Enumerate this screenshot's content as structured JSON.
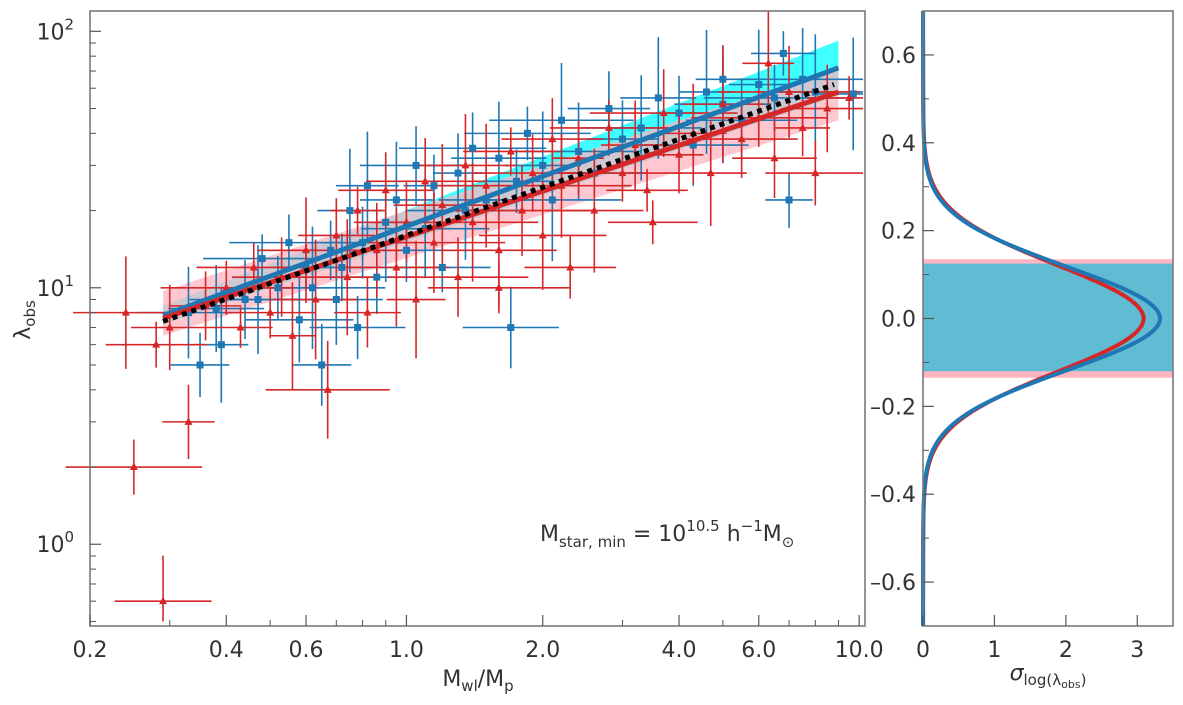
{
  "chart_data": [
    {
      "id": "main-scatter",
      "type": "scatter",
      "xscale": "log",
      "yscale": "log",
      "xlim": [
        0.2,
        10.3
      ],
      "ylim": [
        0.48,
        120
      ],
      "xticks": [
        {
          "value": 0.2,
          "label": "0.2"
        },
        {
          "value": 0.4,
          "label": "0.4"
        },
        {
          "value": 0.6,
          "label": "0.6"
        },
        {
          "value": 1.0,
          "label": "1.0"
        },
        {
          "value": 2.0,
          "label": "2.0"
        },
        {
          "value": 4.0,
          "label": "4.0"
        },
        {
          "value": 6.0,
          "label": "6.0"
        },
        {
          "value": 10.0,
          "label": "10.0"
        }
      ],
      "yticks": [
        {
          "value": 1,
          "base": "10",
          "exp": "0"
        },
        {
          "value": 10,
          "base": "10",
          "exp": "1"
        },
        {
          "value": 100,
          "base": "10",
          "exp": "2"
        }
      ],
      "xlabel": {
        "main": "M",
        "sub1": "wl",
        "mid": "/M",
        "sub2": "p"
      },
      "ylabel": {
        "main": "λ",
        "sub": "obs"
      },
      "annotation": {
        "pre": "M",
        "sub": "star, min",
        "eq": " = 10",
        "sup": "10.5",
        "unit1": " h",
        "sup2": "−1",
        "unit2": "M",
        "sub2": "⊙"
      },
      "series": [
        {
          "color": "#1f77b4",
          "marker": "square",
          "points": [
            [
              0.33,
              8.0
            ],
            [
              0.35,
              5.0
            ],
            [
              0.38,
              8.3
            ],
            [
              0.39,
              6.0
            ],
            [
              0.44,
              9.0
            ],
            [
              0.47,
              9.0
            ],
            [
              0.48,
              13.0
            ],
            [
              0.52,
              10.0
            ],
            [
              0.55,
              15.0
            ],
            [
              0.58,
              7.5
            ],
            [
              0.6,
              12.0
            ],
            [
              0.62,
              10.0
            ],
            [
              0.65,
              5.0
            ],
            [
              0.68,
              14.0
            ],
            [
              0.7,
              9.0
            ],
            [
              0.72,
              12.0
            ],
            [
              0.75,
              20.0
            ],
            [
              0.78,
              7.0
            ],
            [
              0.8,
              15.0
            ],
            [
              0.82,
              25.0
            ],
            [
              0.86,
              11.0
            ],
            [
              0.9,
              18.0
            ],
            [
              0.95,
              22.0
            ],
            [
              1.0,
              14.0
            ],
            [
              1.05,
              30.0
            ],
            [
              1.1,
              17.0
            ],
            [
              1.15,
              25.0
            ],
            [
              1.2,
              12.0
            ],
            [
              1.3,
              28.0
            ],
            [
              1.35,
              20.0
            ],
            [
              1.4,
              35.0
            ],
            [
              1.5,
              22.0
            ],
            [
              1.6,
              32.0
            ],
            [
              1.7,
              7.0
            ],
            [
              1.75,
              26.0
            ],
            [
              1.85,
              40.0
            ],
            [
              2.0,
              30.0
            ],
            [
              2.1,
              22.0
            ],
            [
              2.2,
              45.0
            ],
            [
              2.4,
              34.0
            ],
            [
              2.6,
              28.0
            ],
            [
              2.8,
              50.0
            ],
            [
              3.0,
              38.0
            ],
            [
              3.3,
              42.0
            ],
            [
              3.6,
              55.0
            ],
            [
              4.0,
              48.0
            ],
            [
              4.3,
              36.0
            ],
            [
              4.6,
              58.0
            ],
            [
              5.0,
              52.0
            ],
            [
              5.5,
              45.0
            ],
            [
              6.0,
              62.0
            ],
            [
              6.5,
              55.0
            ],
            [
              7.0,
              22.0
            ],
            [
              7.5,
              65.0
            ],
            [
              8.0,
              58.0
            ],
            [
              9.7,
              57.0
            ],
            [
              6.8,
              82.0
            ],
            [
              5.0,
              65.0
            ]
          ]
        },
        {
          "color": "#d62728",
          "marker": "triangle",
          "points": [
            [
              0.24,
              8.0
            ],
            [
              0.25,
              2.0
            ],
            [
              0.28,
              6.0
            ],
            [
              0.3,
              7.0
            ],
            [
              0.33,
              3.0
            ],
            [
              0.36,
              8.5
            ],
            [
              0.4,
              10.0
            ],
            [
              0.43,
              7.0
            ],
            [
              0.46,
              12.0
            ],
            [
              0.5,
              8.0
            ],
            [
              0.53,
              11.0
            ],
            [
              0.56,
              6.5
            ],
            [
              0.6,
              14.0
            ],
            [
              0.63,
              9.0
            ],
            [
              0.67,
              4.0
            ],
            [
              0.7,
              16.0
            ],
            [
              0.74,
              11.0
            ],
            [
              0.78,
              20.0
            ],
            [
              0.82,
              8.0
            ],
            [
              0.86,
              14.0
            ],
            [
              0.9,
              24.0
            ],
            [
              0.95,
              12.0
            ],
            [
              1.0,
              18.0
            ],
            [
              1.05,
              9.0
            ],
            [
              1.1,
              26.0
            ],
            [
              1.15,
              15.0
            ],
            [
              1.2,
              21.0
            ],
            [
              1.3,
              11.0
            ],
            [
              1.35,
              30.0
            ],
            [
              1.4,
              18.0
            ],
            [
              1.5,
              25.0
            ],
            [
              1.6,
              14.0
            ],
            [
              1.7,
              34.0
            ],
            [
              1.8,
              20.0
            ],
            [
              1.9,
              28.0
            ],
            [
              2.0,
              16.0
            ],
            [
              2.1,
              38.0
            ],
            [
              2.2,
              25.0
            ],
            [
              2.4,
              32.0
            ],
            [
              2.6,
              20.0
            ],
            [
              2.8,
              42.0
            ],
            [
              3.0,
              28.0
            ],
            [
              3.2,
              36.0
            ],
            [
              3.4,
              24.0
            ],
            [
              3.7,
              48.0
            ],
            [
              4.0,
              33.0
            ],
            [
              4.3,
              40.0
            ],
            [
              4.7,
              28.0
            ],
            [
              5.0,
              52.0
            ],
            [
              5.5,
              38.0
            ],
            [
              6.0,
              46.0
            ],
            [
              6.5,
              32.0
            ],
            [
              7.0,
              58.0
            ],
            [
              7.5,
              42.0
            ],
            [
              8.0,
              28.0
            ],
            [
              8.5,
              50.0
            ],
            [
              9.5,
              55.0
            ],
            [
              6.3,
              75.0
            ],
            [
              0.29,
              0.6
            ],
            [
              1.6,
              10.0
            ],
            [
              2.3,
              12.0
            ],
            [
              3.5,
              18.0
            ]
          ]
        }
      ],
      "lines": [
        {
          "color": "#1f77b4",
          "style": "solid",
          "x": [
            0.29,
            9.0
          ],
          "y": [
            7.8,
            72.0
          ],
          "band": "#00ffff",
          "band_lo": [
            7.2,
            56.0
          ],
          "band_hi": [
            8.5,
            92.0
          ]
        },
        {
          "color": "#d62728",
          "style": "solid",
          "x": [
            0.29,
            9.0
          ],
          "y": [
            7.6,
            58.0
          ],
          "band": "#ffb6c1",
          "band_lo": [
            6.5,
            45.0
          ],
          "band_hi": [
            9.7,
            72.0
          ]
        },
        {
          "color": "#000000",
          "style": "dotted",
          "x": [
            0.29,
            8.8
          ],
          "y": [
            7.4,
            62.0
          ]
        }
      ]
    },
    {
      "id": "side-kde",
      "type": "line",
      "orientation": "horizontal",
      "xlim": [
        0,
        3.5
      ],
      "ylim": [
        -0.7,
        0.7
      ],
      "xticks": [
        {
          "value": 0,
          "label": "0"
        },
        {
          "value": 1,
          "label": "1"
        },
        {
          "value": 2,
          "label": "2"
        },
        {
          "value": 3,
          "label": "3"
        }
      ],
      "yticks": [
        {
          "value": 0.6,
          "label": "0.6"
        },
        {
          "value": 0.4,
          "label": "0.4"
        },
        {
          "value": 0.2,
          "label": "0.2"
        },
        {
          "value": 0.0,
          "label": "0.0"
        },
        {
          "value": -0.2,
          "label": "–0.2"
        },
        {
          "value": -0.4,
          "label": "–0.4"
        },
        {
          "value": -0.6,
          "label": "–0.6"
        }
      ],
      "xlabel": {
        "main": "σ",
        "sub": "log(λ",
        "subsub": "obs",
        "close": ")"
      },
      "bands": [
        {
          "color": "#ffb6c1",
          "lo": -0.135,
          "hi": 0.135
        },
        {
          "color": "#5fbcd3",
          "lo": -0.12,
          "hi": 0.125
        }
      ],
      "curves": [
        {
          "color": "#d62728",
          "peak": 3.05,
          "sigma": 0.122
        },
        {
          "color": "#1f77b4",
          "peak": 3.28,
          "sigma": 0.118
        }
      ]
    }
  ]
}
